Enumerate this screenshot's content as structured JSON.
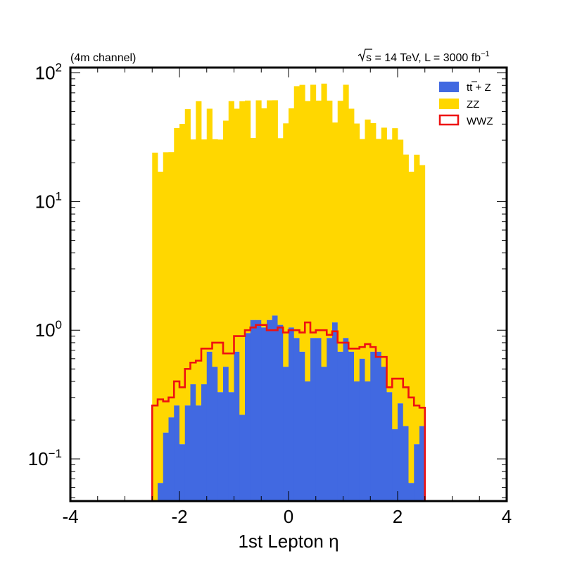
{
  "chart_data": {
    "type": "histogram",
    "channel_label": "(4m channel)",
    "energy_label_sqrt": "s",
    "energy_label_rest": " = 14 TeV, L = 3000 fb",
    "energy_label_exp": "−1",
    "xlabel": "1st Lepton η",
    "ylabel": "",
    "xlim": [
      -4,
      4
    ],
    "ylim": [
      0.047,
      110
    ],
    "yscale": "log",
    "grid": false,
    "legend_position": "top-right",
    "bin_edges": [
      -2.5,
      -2.4,
      -2.3,
      -2.2,
      -2.1,
      -2.0,
      -1.9,
      -1.8,
      -1.7,
      -1.6,
      -1.5,
      -1.4,
      -1.3,
      -1.2,
      -1.1,
      -1.0,
      -0.9,
      -0.8,
      -0.7,
      -0.6,
      -0.5,
      -0.4,
      -0.3,
      -0.2,
      -0.1,
      0.0,
      0.1,
      0.2,
      0.3,
      0.4,
      0.5,
      0.6,
      0.7,
      0.8,
      0.9,
      1.0,
      1.1,
      1.2,
      1.3,
      1.4,
      1.5,
      1.6,
      1.7,
      1.8,
      1.9,
      2.0,
      2.1,
      2.2,
      2.3,
      2.4,
      2.5
    ],
    "x_ticks": [
      "-4",
      "-2",
      "0",
      "2",
      "4"
    ],
    "x_tick_values": [
      -4,
      -2,
      0,
      2,
      4
    ],
    "y_ticks": [
      {
        "value": 0.1,
        "base": "10",
        "exp": "−1"
      },
      {
        "value": 1,
        "base": "10",
        "exp": "0"
      },
      {
        "value": 10,
        "base": "10",
        "exp": "1"
      },
      {
        "value": 100,
        "base": "10",
        "exp": "2"
      }
    ],
    "series": [
      {
        "name": "tt̄ + Z",
        "legend_main": "tt",
        "legend_rest": " + Z",
        "style": "filled-stacked",
        "color": "#4169e1",
        "values": [
          0.0,
          0.065,
          0.16,
          0.21,
          0.26,
          0.13,
          0.26,
          0.38,
          0.26,
          0.38,
          0.68,
          0.52,
          0.33,
          0.52,
          0.33,
          0.68,
          0.22,
          0.95,
          1.2,
          1.2,
          1.05,
          1.2,
          1.3,
          1.1,
          0.52,
          1.05,
          0.87,
          0.68,
          0.4,
          0.87,
          0.87,
          0.52,
          0.87,
          1.15,
          0.68,
          0.87,
          0.68,
          0.4,
          0.6,
          0.4,
          0.68,
          0.68,
          0.52,
          0.33,
          0.17,
          0.27,
          0.18,
          0.065,
          0.13,
          0.18
        ]
      },
      {
        "name": "ZZ",
        "style": "filled-stacked",
        "color": "#ffd700",
        "values": [
          24,
          17,
          24,
          24,
          37,
          40,
          52,
          30,
          60,
          30,
          52,
          30,
          30,
          42,
          60,
          52,
          60,
          60,
          30,
          60,
          52,
          60,
          60,
          30,
          40,
          52,
          78,
          80,
          60,
          80,
          60,
          82,
          60,
          40,
          60,
          80,
          52,
          40,
          30,
          43,
          40,
          30,
          37,
          30,
          37,
          30,
          23,
          17,
          23,
          19
        ]
      },
      {
        "name": "WWZ",
        "style": "step-outline",
        "color": "#ee1111",
        "values": [
          0.26,
          0.29,
          0.28,
          0.3,
          0.4,
          0.36,
          0.5,
          0.56,
          0.58,
          0.72,
          0.72,
          0.8,
          0.8,
          0.66,
          0.66,
          0.9,
          0.9,
          1.0,
          1.05,
          1.1,
          1.1,
          1.0,
          1.0,
          1.05,
          0.96,
          1.0,
          1.0,
          0.96,
          1.15,
          0.96,
          1.0,
          1.0,
          0.92,
          0.98,
          0.8,
          0.8,
          0.72,
          0.72,
          0.74,
          0.78,
          0.74,
          0.62,
          0.62,
          0.36,
          0.42,
          0.42,
          0.36,
          0.3,
          0.26,
          0.25
        ]
      }
    ]
  },
  "colors": {
    "frame": "#000000",
    "background": "#ffffff"
  }
}
